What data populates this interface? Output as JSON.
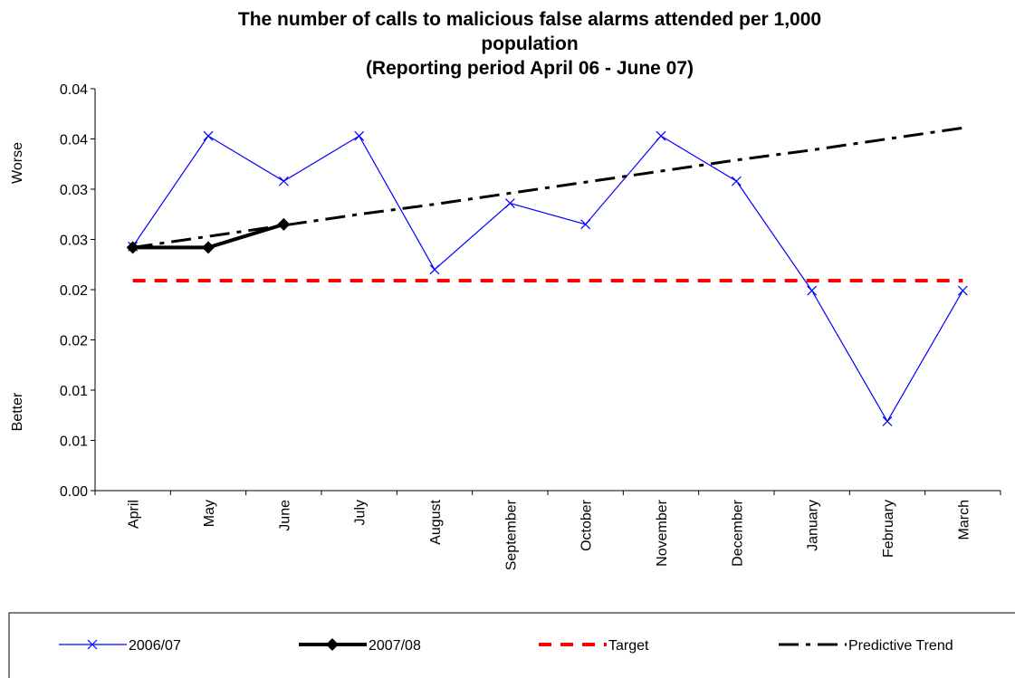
{
  "chart_data": {
    "type": "line",
    "title": [
      "The number of calls to malicious false alarms attended per 1,000",
      "population",
      "(Reporting period  April 06 - June 07)"
    ],
    "y_labels": [
      "Worse",
      "Better"
    ],
    "categories": [
      "April",
      "May",
      "June",
      "July",
      "August",
      "September",
      "October",
      "November",
      "December",
      "January",
      "February",
      "March"
    ],
    "series": [
      {
        "name": "2006/07",
        "color": "#0000ff",
        "marker": "x",
        "dash": "solid",
        "width": 1.2,
        "values": [
          0.0243,
          0.0353,
          0.0308,
          0.0353,
          0.022,
          0.0286,
          0.0265,
          0.0353,
          0.0308,
          0.0199,
          0.0069,
          0.0199
        ]
      },
      {
        "name": "2007/08",
        "color": "#000000",
        "marker": "diamond",
        "dash": "solid",
        "width": 4,
        "values": [
          0.0242,
          0.0242,
          0.0265,
          null,
          null,
          null,
          null,
          null,
          null,
          null,
          null,
          null
        ]
      },
      {
        "name": "Target",
        "color": "#ff0000",
        "marker": "none",
        "dash": "dashed",
        "width": 4,
        "values": [
          0.0209,
          0.0209,
          0.0209,
          0.0209,
          0.0209,
          0.0209,
          0.0209,
          0.0209,
          0.0209,
          0.0209,
          0.0209,
          0.0209
        ]
      },
      {
        "name": "Predictive Trend",
        "color": "#000000",
        "marker": "none",
        "dash": "dashdot",
        "width": 3,
        "values": [
          0.0242,
          0.0253,
          0.0264,
          0.0275,
          0.0285,
          0.0296,
          0.0307,
          0.0318,
          0.0329,
          0.0339,
          0.035,
          0.0361
        ]
      }
    ],
    "ylim": [
      0,
      0.04
    ],
    "yticks": [
      {
        "value": 0,
        "label": "0.00"
      },
      {
        "value": 0.005,
        "label": "0.01"
      },
      {
        "value": 0.01,
        "label": "0.01"
      },
      {
        "value": 0.015,
        "label": "0.02"
      },
      {
        "value": 0.02,
        "label": "0.02"
      },
      {
        "value": 0.025,
        "label": "0.03"
      },
      {
        "value": 0.03,
        "label": "0.03"
      },
      {
        "value": 0.035,
        "label": "0.04"
      },
      {
        "value": 0.04,
        "label": "0.04"
      }
    ],
    "grid": false,
    "legend": "bottom"
  }
}
